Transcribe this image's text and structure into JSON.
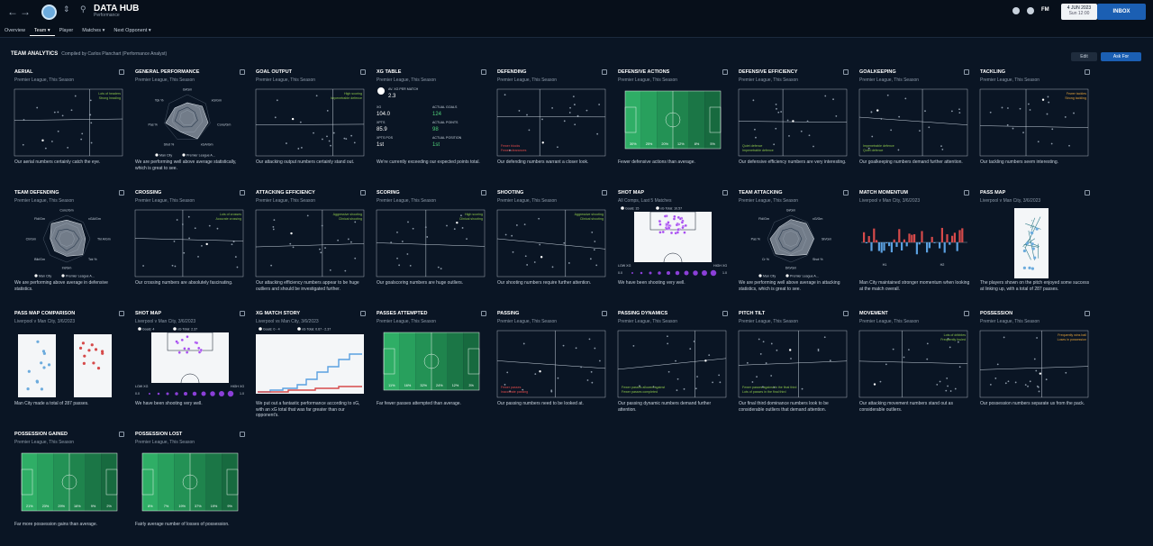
{
  "header": {
    "title": "DATA HUB",
    "subtitle": "Performance",
    "date": "4 JUN 2023",
    "time": "Sun 12:00",
    "inbox": "INBOX",
    "fm": "FM"
  },
  "tabs": [
    "Overview",
    "Team",
    "Player",
    "Matches",
    "Next Opponent"
  ],
  "page": {
    "title": "TEAM ANALYTICS",
    "compiled": "Compiled by Carlos Planchart (Performance Analyst)",
    "edit": "Edit",
    "ask": "Ask For"
  },
  "colors": {
    "accent": "#1b5fb3",
    "pitch": "#1f8a4f"
  },
  "cards": [
    {
      "title": "AERIAL",
      "sub": "Premier League, This Season",
      "kind": "scatter",
      "l1": "Lots of headers",
      "l2": "Strong heading",
      "cap": "Our aerial numbers certainly catch the eye."
    },
    {
      "title": "GENERAL PERFORMANCE",
      "sub": "Premier League, This Season",
      "kind": "radar",
      "r": [
        "Gl/Gm",
        "xG/Gm",
        "Conc/Gm",
        "xGA/Gm",
        "Shot %",
        "Pas %",
        "Tck %"
      ],
      "leg": [
        "Man City",
        "Premier League A..."
      ],
      "cap": "We are performing well above average statistically, which is great to see."
    },
    {
      "title": "GOAL OUTPUT",
      "sub": "Premier League, This Season",
      "kind": "scatter",
      "l1": "High scoring",
      "l2": "Impenetrable defence",
      "cap": "Our attacking output numbers certainly stand out."
    },
    {
      "title": "XG TABLE",
      "sub": "Premier League, This Season",
      "kind": "xgtable",
      "v": {
        "av": "AV. XG PER MATCH",
        "avv": "2.3",
        "xg": "XG",
        "xgv": "104.0",
        "ag": "ACTUAL GOALS",
        "agv": "124",
        "xp": "XPTS",
        "xpv": "85.9",
        "ap": "ACTUAL POINTS",
        "apv": "98",
        "xpos": "XPTS POS",
        "xposv": "1st",
        "apos": "ACTUAL POSITION",
        "aposv": "1st"
      },
      "cap": "We're currently exceeding our expected points total."
    },
    {
      "title": "DEFENDING",
      "sub": "Premier League, This Season",
      "kind": "scatter",
      "l1": "Fewer blocks",
      "l2": "Fewer clearances",
      "cap": "Our defending numbers warrant a closer look."
    },
    {
      "title": "DEFENSIVE ACTIONS",
      "sub": "Premier League, This Season",
      "kind": "pitch",
      "p": [
        "30%",
        "25%",
        "20%",
        "12%",
        "8%",
        "5%"
      ],
      "cap": "Fewer defensive actions than average."
    },
    {
      "title": "DEFENSIVE EFFICIENCY",
      "sub": "Premier League, This Season",
      "kind": "scatter",
      "l1": "Quiet defence",
      "l2": "Impenetrable defence",
      "cap": "Our defensive efficiency numbers are very interesting."
    },
    {
      "title": "GOALKEEPING",
      "sub": "Premier League, This Season",
      "kind": "scatter",
      "l1": "Impenetrable defence",
      "l2": "Quiet defence",
      "cap": "Our goalkeeping numbers demand further attention."
    },
    {
      "title": "TACKLING",
      "sub": "Premier League, This Season",
      "kind": "scatter",
      "l1": "Fewer tackles",
      "l2": "Strong tackling",
      "cap": "Our tackling numbers seem interesting."
    },
    {
      "title": "TEAM DEFENDING",
      "sub": "Premier League, This Season",
      "kind": "radar",
      "r": [
        "Conc/Gm",
        "xGA/Gm",
        "Tkl A/Gm",
        "Tck %",
        "Int/Gm",
        "Blk/Gm",
        "Clr/Gm",
        "Fld/Gm"
      ],
      "leg": [
        "Man City",
        "Premier League A..."
      ],
      "cap": "We are performing above average in defensive statistics."
    },
    {
      "title": "CROSSING",
      "sub": "Premier League, This Season",
      "kind": "scatter",
      "l1": "Lots of crosses",
      "l2": "Accurate crossing",
      "cap": "Our crossing numbers are absolutely fascinating."
    },
    {
      "title": "ATTACKING EFFICIENCY",
      "sub": "Premier League, This Season",
      "kind": "scatter",
      "l1": "Aggressive shooting",
      "l2": "Clinical shooting",
      "cap": "Our attacking efficiency numbers appear to be huge outliers and should be investigated further."
    },
    {
      "title": "SCORING",
      "sub": "Premier League, This Season",
      "kind": "scatter",
      "l1": "High scoring",
      "l2": "Clinical shooting",
      "cap": "Our goalscoring numbers are huge outliers."
    },
    {
      "title": "SHOOTING",
      "sub": "Premier League, This Season",
      "kind": "scatter",
      "l1": "Aggressive shooting",
      "l2": "Clinical shooting",
      "cap": "Our shooting numbers require further attention."
    },
    {
      "title": "SHOT MAP",
      "sub": "All Comps, Last 5 Matches",
      "kind": "shotmap",
      "g": "Goals: 15",
      "xg": "xG Total: 10.57",
      "lo": "LOW XG",
      "hi": "HIGH XG",
      "s0": "0.0",
      "s1": "1.0",
      "cap": "We have been shooting very well."
    },
    {
      "title": "TEAM ATTACKING",
      "sub": "Premier League, This Season",
      "kind": "radar",
      "r": [
        "Gl/Gm",
        "xG/Gm",
        "Sh/Gm",
        "Shot %",
        "Drb/Gm",
        "Cr %",
        "Pas %",
        "Fld/Gm"
      ],
      "leg": [
        "Man City",
        "Premier League A..."
      ],
      "cap": "We are performing well above average in attacking statistics, which is great to see."
    },
    {
      "title": "MATCH MOMENTUM",
      "sub": "Liverpool v Man City, 3/6/2023",
      "kind": "momentum",
      "h1": "H1",
      "h2": "H2",
      "cap": "Man City maintained stronger momentum when looking at the match overall."
    },
    {
      "title": "PASS MAP",
      "sub": "Liverpool v Man City, 3/6/2023",
      "kind": "passmap",
      "cap": "The players shown on the pitch enjoyed some success at linking up, with a total of 287 passes."
    },
    {
      "title": "PASS MAP COMPARISON",
      "sub": "Liverpool v Man City, 3/6/2023",
      "kind": "passcomp",
      "cap": "Man City made a total of 287 passes."
    },
    {
      "title": "SHOT MAP",
      "sub": "Liverpool v Man City, 3/6/2023",
      "kind": "shotmap",
      "g": "Goals: 4",
      "xg": "xG Total: 2.37",
      "lo": "LOW XG",
      "hi": "HIGH XG",
      "s0": "0.0",
      "s1": "1.0",
      "cap": "We have been shooting very well."
    },
    {
      "title": "XG MATCH STORY",
      "sub": "Liverpool vs Man City, 3/6/2023",
      "kind": "xgstory",
      "g": "Goals: 0 - 4",
      "xg": "xG Total: 0.67 - 2.37",
      "cap": "We put out a fantastic performance according to xG, with an xG total that was far greater than our opponent's."
    },
    {
      "title": "PASSES ATTEMPTED",
      "sub": "Premier League, This Season",
      "kind": "pitch",
      "p": [
        "11%",
        "16%",
        "32%",
        "24%",
        "12%",
        "3%"
      ],
      "cap": "Far fewer passes attempted than average."
    },
    {
      "title": "PASSING",
      "sub": "Premier League, This Season",
      "kind": "scatter",
      "l1": "Fewer passes",
      "l2": "Inaccurate passing",
      "cap": "Our passing numbers need to be looked at."
    },
    {
      "title": "PASSING DYNAMICS",
      "sub": "Premier League, This Season",
      "kind": "scatter",
      "l1": "Fewer passes allowed against",
      "l2": "Fewer passes completed",
      "cap": "Our passing dynamic numbers demand further attention."
    },
    {
      "title": "PITCH TILT",
      "sub": "Premier League, This Season",
      "kind": "scatter",
      "l1": "Fewer passes against in the final third",
      "l2": "Lots of passes in the final third",
      "cap": "Our final third dominance numbers look to be considerable outliers that demand attention."
    },
    {
      "title": "MOVEMENT",
      "sub": "Premier League, This Season",
      "kind": "scatter",
      "l1": "Lots of dribbles",
      "l2": "Frequently fouled",
      "cap": "Our attacking movement numbers stand out as considerable outliers."
    },
    {
      "title": "POSSESSION",
      "sub": "Premier League, This Season",
      "kind": "scatter",
      "l1": "Frequently wins ball",
      "l2": "Loses in possession",
      "cap": "Our possession numbers separate us from the pack."
    },
    {
      "title": "POSSESSION GAINED",
      "sub": "Premier League, This Season",
      "kind": "pitch",
      "p": [
        "21%",
        "23%",
        "29%",
        "16%",
        "9%",
        "2%"
      ],
      "cap": "Far more possession gains than average."
    },
    {
      "title": "POSSESSION LOST",
      "sub": "Premier League, This Season",
      "kind": "pitch",
      "p": [
        "8%",
        "7%",
        "19%",
        "37%",
        "19%",
        "9%"
      ],
      "cap": "Fairly average number of losses of possession."
    }
  ]
}
